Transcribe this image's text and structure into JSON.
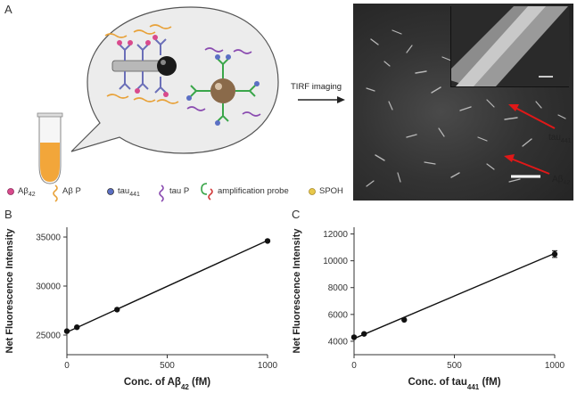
{
  "panels": {
    "a": "A",
    "b": "B",
    "c": "C"
  },
  "schematic": {
    "arrow_label": "TIRF imaging",
    "annotation_tau": "tau",
    "annotation_tau_sub": "441",
    "annotation_ab": "Aβ",
    "annotation_ab_sub": "42"
  },
  "legend": [
    {
      "label": "Aβ",
      "sub": "42",
      "icon": "pink-dot-icon"
    },
    {
      "label": "Aβ P",
      "sub": "",
      "icon": "orange-probe-icon"
    },
    {
      "label": "tau",
      "sub": "441",
      "icon": "blue-dot-icon"
    },
    {
      "label": "tau P",
      "sub": "",
      "icon": "purple-probe-icon"
    },
    {
      "label": "amplification probe",
      "sub": "",
      "icon": "green-red-probe-icon"
    },
    {
      "label": "SPOH",
      "sub": "",
      "icon": "yellow-dot-icon"
    }
  ],
  "colors": {
    "pink": "#d94a8c",
    "orange": "#e8a23a",
    "blue": "#5b6fc4",
    "purple": "#8a4bb0",
    "green": "#3aa64a",
    "red": "#d23a3a",
    "yellow": "#e8c84a",
    "arrow_red": "#e01818"
  },
  "chart_data": [
    {
      "type": "scatter",
      "panel": "B",
      "xlabel": "Conc. of Aβ",
      "xlabel_sub": "42",
      "xlabel_unit": " (fM)",
      "ylabel": "Net Fluorescence Intensity",
      "xlim": [
        0,
        1000
      ],
      "ylim": [
        23000,
        36000
      ],
      "xticks": [
        0,
        500,
        1000
      ],
      "yticks": [
        25000,
        30000,
        35000
      ],
      "points": [
        {
          "x": 0,
          "y": 25400
        },
        {
          "x": 50,
          "y": 25800
        },
        {
          "x": 250,
          "y": 27600
        },
        {
          "x": 1000,
          "y": 34600
        }
      ],
      "fit": {
        "x": [
          0,
          1000
        ],
        "y": [
          25300,
          34650
        ]
      }
    },
    {
      "type": "scatter",
      "panel": "C",
      "xlabel": "Conc. of tau",
      "xlabel_sub": "441",
      "xlabel_unit": " (fM)",
      "ylabel": "Net Fluorescence Intensity",
      "xlim": [
        0,
        1000
      ],
      "ylim": [
        3000,
        12500
      ],
      "xticks": [
        0,
        500,
        1000
      ],
      "yticks": [
        4000,
        6000,
        8000,
        10000,
        12000
      ],
      "points": [
        {
          "x": 0,
          "y": 4300,
          "err": 0
        },
        {
          "x": 50,
          "y": 4550,
          "err": 0
        },
        {
          "x": 250,
          "y": 5600,
          "err": 0
        },
        {
          "x": 1000,
          "y": 10500,
          "err": 250
        }
      ],
      "fit": {
        "x": [
          0,
          1000
        ],
        "y": [
          4200,
          10550
        ]
      }
    }
  ]
}
